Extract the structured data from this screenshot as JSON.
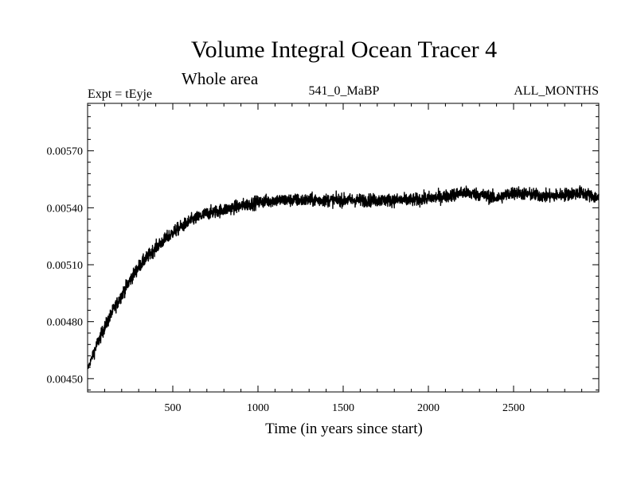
{
  "chart_data": {
    "type": "line",
    "title": "Volume Integral Ocean Tracer 4",
    "subtitle": "Whole area",
    "experiment": "Expt = tEyje",
    "run_label": "541_0_MaBP",
    "months_label": "ALL_MONTHS",
    "xlabel": "Time (in years since start)",
    "ylabel": "",
    "xlim": [
      0,
      3000
    ],
    "ylim": [
      0.00443,
      0.00595
    ],
    "x_ticks": [
      {
        "value": 500,
        "label": "500"
      },
      {
        "value": 1000,
        "label": "1000"
      },
      {
        "value": 1500,
        "label": "1500"
      },
      {
        "value": 2000,
        "label": "2000"
      },
      {
        "value": 2500,
        "label": "2500"
      }
    ],
    "y_ticks": [
      {
        "value": 0.0045,
        "label": "0.00450"
      },
      {
        "value": 0.0048,
        "label": "0.00480"
      },
      {
        "value": 0.0051,
        "label": "0.00510"
      },
      {
        "value": 0.0054,
        "label": "0.00540"
      },
      {
        "value": 0.0057,
        "label": "0.00570"
      }
    ],
    "series": [
      {
        "name": "Volume Integral Ocean Tracer 4",
        "x": [
          0,
          50,
          100,
          150,
          200,
          250,
          300,
          350,
          400,
          450,
          500,
          550,
          600,
          650,
          700,
          750,
          800,
          850,
          900,
          950,
          1000,
          1100,
          1200,
          1300,
          1400,
          1500,
          1600,
          1700,
          1800,
          1900,
          2000,
          2100,
          2200,
          2300,
          2400,
          2500,
          2600,
          2700,
          2800,
          2900,
          3000
        ],
        "y": [
          0.00455,
          0.00467,
          0.00477,
          0.00486,
          0.00494,
          0.00502,
          0.00509,
          0.00514,
          0.00519,
          0.00523,
          0.00527,
          0.0053,
          0.00533,
          0.00535,
          0.00537,
          0.00538,
          0.00539,
          0.0054,
          0.00541,
          0.00542,
          0.00543,
          0.00544,
          0.00544,
          0.00544,
          0.00544,
          0.00544,
          0.00544,
          0.00544,
          0.00544,
          0.00544,
          0.00545,
          0.00546,
          0.00548,
          0.00547,
          0.00545,
          0.00548,
          0.00547,
          0.00546,
          0.00547,
          0.00548,
          0.00545
        ],
        "noise_amplitude": 6e-05
      }
    ]
  },
  "colors": {
    "line": "#000000",
    "background": "#ffffff"
  }
}
